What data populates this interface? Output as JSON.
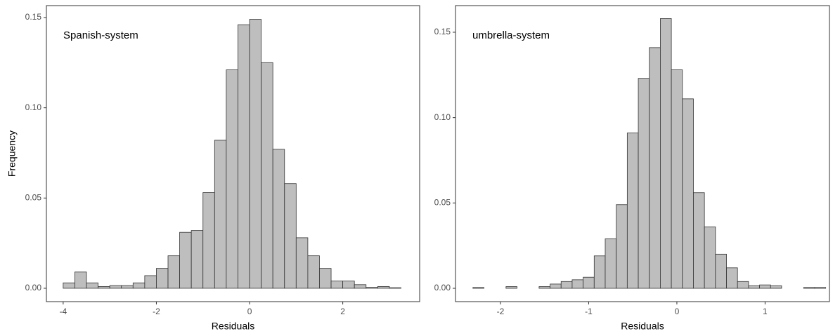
{
  "chart_data": [
    {
      "type": "histogram",
      "annotation": "Spanish-system",
      "xlabel": "Residuals",
      "ylabel": "Frequency",
      "bins": [
        -4,
        -3.75,
        -3.5,
        -3.25,
        -3,
        -2.75,
        -2.5,
        -2.25,
        -2,
        -1.75,
        -1.5,
        -1.25,
        -1,
        -0.75,
        -0.5,
        -0.25,
        0,
        0.25,
        0.5,
        0.75,
        1,
        1.25,
        1.5,
        1.75,
        2,
        2.25,
        2.5,
        2.75,
        3,
        3.25
      ],
      "values": [
        0.003,
        0.009,
        0.003,
        0.001,
        0.0015,
        0.0015,
        0.003,
        0.007,
        0.011,
        0.018,
        0.031,
        0.032,
        0.053,
        0.082,
        0.121,
        0.146,
        0.149,
        0.125,
        0.077,
        0.058,
        0.028,
        0.018,
        0.011,
        0.004,
        0.004,
        0.002,
        0.0005,
        0.001,
        0.0003
      ],
      "color": "#bebebe",
      "edgecolor": "#333333",
      "xlim": [
        -4.36,
        3.65
      ],
      "xticks": [
        -4,
        -2,
        0,
        2
      ],
      "ylim": [
        -0.0074,
        0.1566
      ],
      "yticks": [
        {
          "value": 0,
          "label": "0.00"
        },
        {
          "value": 0.05,
          "label": "0.05"
        },
        {
          "value": 0.1,
          "label": "0.10"
        },
        {
          "value": 0.15,
          "label": "0.15"
        }
      ]
    },
    {
      "type": "histogram",
      "annotation": "umbrella-system",
      "xlabel": "Residuals",
      "bins": [
        -2.3125,
        -2.1875,
        -2.0625,
        -1.9375,
        -1.8125,
        -1.6875,
        -1.5625,
        -1.4375,
        -1.3125,
        -1.1875,
        -1.0625,
        -0.9375,
        -0.8125,
        -0.6875,
        -0.5625,
        -0.4375,
        -0.3125,
        -0.1875,
        -0.0625,
        0.0625,
        0.1875,
        0.3125,
        0.4375,
        0.5625,
        0.6875,
        0.8125,
        0.9375,
        1.0625,
        1.1875,
        1.3125,
        1.4375,
        1.5625,
        1.6875
      ],
      "values": [
        0.0005,
        0,
        0,
        0.001,
        0,
        0,
        0.001,
        0.0025,
        0.004,
        0.005,
        0.0065,
        0.019,
        0.029,
        0.049,
        0.091,
        0.123,
        0.141,
        0.158,
        0.128,
        0.111,
        0.056,
        0.036,
        0.02,
        0.012,
        0.004,
        0.0015,
        0.002,
        0.0015,
        0,
        0,
        0.0005,
        0.0005
      ],
      "color": "#bebebe",
      "edgecolor": "#333333",
      "xlim": [
        -2.51,
        1.73
      ],
      "xticks": [
        -2,
        -1,
        0,
        1
      ],
      "ylim": [
        -0.0078,
        0.1656
      ],
      "yticks": [
        {
          "value": 0,
          "label": "0.00"
        },
        {
          "value": 0.05,
          "label": "0.05"
        },
        {
          "value": 0.1,
          "label": "0.10"
        },
        {
          "value": 0.15,
          "label": "0.15"
        }
      ]
    }
  ]
}
